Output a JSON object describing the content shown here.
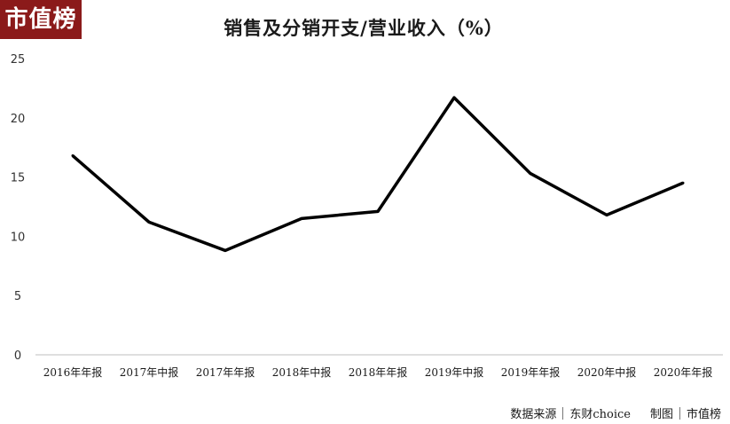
{
  "logo": {
    "text": "市值榜",
    "color": "#8b1a1a"
  },
  "title": "销售及分销开支/营业收入（%）",
  "chart_data": {
    "type": "line",
    "title": "销售及分销开支/营业收入（%）",
    "categories": [
      "2016年年报",
      "2017年中报",
      "2017年年报",
      "2018年中报",
      "2018年年报",
      "2019年中报",
      "2019年年报",
      "2020年中报",
      "2020年年报"
    ],
    "series": [
      {
        "values": [
          16.8,
          11.2,
          8.8,
          11.5,
          12.1,
          21.7,
          15.3,
          11.8,
          14.5
        ],
        "color": "#000000"
      }
    ],
    "yticks": [
      "0",
      "5",
      "10",
      "15",
      "20",
      "25"
    ],
    "ylim": [
      0,
      25
    ],
    "grid": false,
    "legend": "none"
  },
  "source": {
    "label": "数据来源",
    "provider": "东财choice",
    "made_by_label": "制图",
    "made_by": "市值榜"
  }
}
